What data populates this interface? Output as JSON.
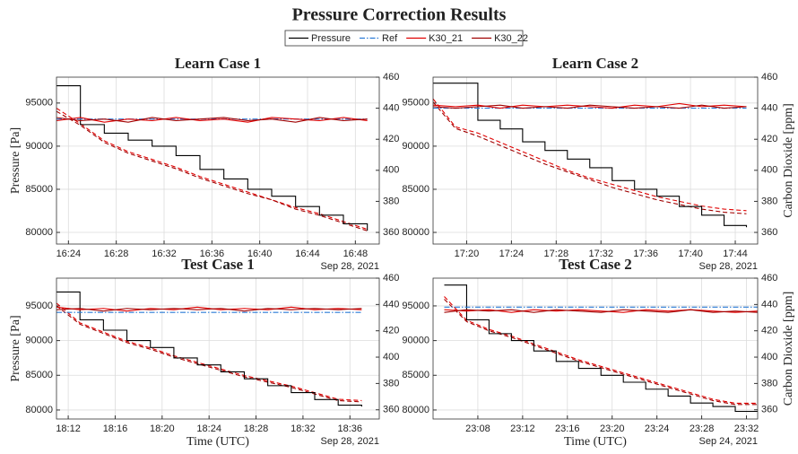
{
  "title": "Pressure Correction Results",
  "chart_data": [
    {
      "type": "line",
      "title": "Learn Case 1",
      "ylabel": "Pressure [Pa]",
      "date_label": "Sep 28, 2021",
      "xlim": [
        983,
        1010
      ],
      "xticks": [
        {
          "value": 984,
          "label": "16:24"
        },
        {
          "value": 988,
          "label": "16:28"
        },
        {
          "value": 992,
          "label": "16:32"
        },
        {
          "value": 996,
          "label": "16:36"
        },
        {
          "value": 1000,
          "label": "16:40"
        },
        {
          "value": 1004,
          "label": "16:44"
        },
        {
          "value": 1008,
          "label": "16:48"
        }
      ],
      "ylim": [
        78650,
        98000
      ],
      "yticks": [
        80000,
        85000,
        90000,
        95000
      ],
      "y2lim": [
        352.5,
        460
      ],
      "y2ticks": [
        360,
        380,
        400,
        420,
        440,
        460
      ],
      "grid": true,
      "x": [
        983,
        985,
        987,
        989,
        991,
        993,
        995,
        997,
        999,
        1001,
        1003,
        1005,
        1007,
        1009
      ],
      "series": [
        {
          "name": "Pressure",
          "color": "#000000",
          "axis": "y",
          "style": "solid",
          "step": true,
          "values": [
            97000,
            92500,
            91500,
            90700,
            90000,
            88900,
            87300,
            86200,
            85000,
            84200,
            83000,
            82000,
            81000,
            80200
          ]
        },
        {
          "name": "Ref",
          "color": "#2b7bd6",
          "axis": "y2",
          "style": "dashdot",
          "values": [
            433,
            433,
            433,
            433,
            433,
            433,
            433,
            433,
            433,
            433,
            433,
            433,
            433,
            433
          ]
        },
        {
          "name": "K30_21",
          "color": "#e00000",
          "axis": "y2",
          "style": "solid",
          "values": [
            432,
            434,
            431,
            433,
            432,
            434,
            432,
            433,
            431,
            434,
            433,
            432,
            434,
            432
          ]
        },
        {
          "name": "K30_22",
          "color": "#a00000",
          "axis": "y2",
          "style": "solid",
          "values": [
            434,
            432,
            433,
            431,
            434,
            432,
            433,
            434,
            432,
            433,
            431,
            434,
            432,
            433
          ]
        },
        {
          "name": "K30_21",
          "color": "#e00000",
          "axis": "y2",
          "style": "dashed",
          "values": [
            440,
            430,
            419,
            412,
            407,
            402,
            396,
            391,
            386,
            381,
            376,
            372,
            367,
            362
          ]
        },
        {
          "name": "K30_22",
          "color": "#a00000",
          "axis": "y2",
          "style": "dashed",
          "values": [
            438,
            429,
            418,
            411,
            406,
            401,
            395,
            390,
            385,
            381,
            375,
            371,
            366,
            361
          ]
        }
      ]
    },
    {
      "type": "line",
      "title": "Learn Case 2",
      "y2label": "Carbon Dioxide [ppm]",
      "date_label": "Sep 28, 2021",
      "xlim": [
        1037,
        1066
      ],
      "xticks": [
        {
          "value": 1040,
          "label": "17:20"
        },
        {
          "value": 1044,
          "label": "17:24"
        },
        {
          "value": 1048,
          "label": "17:28"
        },
        {
          "value": 1052,
          "label": "17:32"
        },
        {
          "value": 1056,
          "label": "17:36"
        },
        {
          "value": 1060,
          "label": "17:40"
        },
        {
          "value": 1064,
          "label": "17:44"
        }
      ],
      "ylim": [
        78650,
        98000
      ],
      "yticks": [
        80000,
        85000,
        90000,
        95000
      ],
      "y2lim": [
        352.5,
        460
      ],
      "y2ticks": [
        360,
        380,
        400,
        420,
        440,
        460
      ],
      "grid": true,
      "x": [
        1037,
        1039,
        1041,
        1043,
        1045,
        1047,
        1049,
        1051,
        1053,
        1055,
        1057,
        1059,
        1061,
        1063,
        1065
      ],
      "series": [
        {
          "name": "Pressure",
          "color": "#000000",
          "axis": "y",
          "style": "solid",
          "step": true,
          "values": [
            97300,
            97300,
            93000,
            92000,
            90500,
            89500,
            88500,
            87500,
            86000,
            85000,
            84200,
            83000,
            82000,
            80800,
            80600
          ]
        },
        {
          "name": "Ref",
          "color": "#2b7bd6",
          "axis": "y2",
          "style": "dashdot",
          "values": [
            440,
            440,
            440,
            440,
            440,
            440,
            440,
            440,
            440,
            440,
            440,
            440,
            440,
            440,
            440
          ]
        },
        {
          "name": "K30_21",
          "color": "#e00000",
          "axis": "y2",
          "style": "solid",
          "values": [
            442,
            441,
            442,
            440,
            442,
            441,
            442,
            441,
            440,
            442,
            441,
            443,
            441,
            442,
            441
          ]
        },
        {
          "name": "K30_22",
          "color": "#a00000",
          "axis": "y2",
          "style": "solid",
          "values": [
            441,
            440,
            441,
            442,
            440,
            441,
            440,
            442,
            441,
            440,
            441,
            440,
            442,
            440,
            441
          ]
        },
        {
          "name": "K30_21",
          "color": "#e00000",
          "axis": "y2",
          "style": "dashed",
          "values": [
            446,
            428,
            424,
            418,
            412,
            406,
            400,
            395,
            391,
            387,
            383,
            380,
            377,
            375,
            374
          ]
        },
        {
          "name": "K30_22",
          "color": "#a00000",
          "axis": "y2",
          "style": "dashed",
          "values": [
            444,
            427,
            422,
            416,
            410,
            404,
            399,
            394,
            389,
            385,
            381,
            378,
            375,
            373,
            372
          ]
        }
      ]
    },
    {
      "type": "line",
      "title": "Test Case 1",
      "ylabel": "Pressure [Pa]",
      "xlabel": "Time (UTC)",
      "date_label": "Sep 28, 2021",
      "xlim": [
        1091,
        1118.5
      ],
      "xticks": [
        {
          "value": 1092,
          "label": "18:12"
        },
        {
          "value": 1096,
          "label": "18:16"
        },
        {
          "value": 1100,
          "label": "18:20"
        },
        {
          "value": 1104,
          "label": "18:24"
        },
        {
          "value": 1108,
          "label": "18:28"
        },
        {
          "value": 1112,
          "label": "18:32"
        },
        {
          "value": 1116,
          "label": "18:36"
        }
      ],
      "ylim": [
        78700,
        99000
      ],
      "yticks": [
        80000,
        85000,
        90000,
        95000
      ],
      "y2lim": [
        353,
        460
      ],
      "y2ticks": [
        360,
        380,
        400,
        420,
        440,
        460
      ],
      "grid": true,
      "x": [
        1091,
        1093,
        1095,
        1097,
        1099,
        1101,
        1103,
        1105,
        1107,
        1109,
        1111,
        1113,
        1115,
        1117
      ],
      "series": [
        {
          "name": "Pressure",
          "color": "#000000",
          "axis": "y",
          "style": "solid",
          "step": true,
          "values": [
            97000,
            93000,
            91500,
            90000,
            89000,
            87500,
            86500,
            85500,
            84500,
            83500,
            82500,
            81500,
            80700,
            80500
          ]
        },
        {
          "name": "Ref",
          "color": "#2b7bd6",
          "axis": "y2",
          "style": "dashdot",
          "values": [
            434,
            434,
            434,
            434,
            434,
            434,
            434,
            434,
            434,
            434,
            434,
            434,
            434,
            434
          ]
        },
        {
          "name": "K30_21",
          "color": "#e00000",
          "axis": "y2",
          "style": "solid",
          "values": [
            438,
            436,
            437,
            435,
            437,
            436,
            438,
            436,
            437,
            436,
            438,
            436,
            437,
            436
          ]
        },
        {
          "name": "K30_22",
          "color": "#a00000",
          "axis": "y2",
          "style": "solid",
          "values": [
            436,
            437,
            435,
            437,
            436,
            437,
            436,
            437,
            435,
            437,
            436,
            437,
            436,
            437
          ]
        },
        {
          "name": "K30_21",
          "color": "#e00000",
          "axis": "y2",
          "style": "dashed",
          "values": [
            441,
            426,
            419,
            412,
            407,
            401,
            396,
            391,
            386,
            382,
            378,
            373,
            368,
            367
          ]
        },
        {
          "name": "K30_22",
          "color": "#a00000",
          "axis": "y2",
          "style": "dashed",
          "values": [
            439,
            425,
            418,
            411,
            406,
            400,
            395,
            390,
            385,
            381,
            377,
            372,
            367,
            366
          ]
        }
      ]
    },
    {
      "type": "line",
      "title": "Test Case 2",
      "xlabel": "Time (UTC)",
      "y2label": "Carbon Dioxide [ppm]",
      "date_label": "Sep 24, 2021",
      "xlim": [
        1384,
        1413
      ],
      "xticks": [
        {
          "value": 1388,
          "label": "23:08"
        },
        {
          "value": 1392,
          "label": "23:12"
        },
        {
          "value": 1396,
          "label": "23:16"
        },
        {
          "value": 1400,
          "label": "23:20"
        },
        {
          "value": 1404,
          "label": "23:24"
        },
        {
          "value": 1408,
          "label": "23:28"
        },
        {
          "value": 1412,
          "label": "23:32"
        }
      ],
      "ylim": [
        78700,
        99000
      ],
      "yticks": [
        80000,
        85000,
        90000,
        95000
      ],
      "y2lim": [
        353,
        460
      ],
      "y2ticks": [
        360,
        380,
        400,
        420,
        440,
        460
      ],
      "grid": true,
      "x": [
        1385,
        1387,
        1389,
        1391,
        1393,
        1395,
        1397,
        1399,
        1401,
        1403,
        1405,
        1407,
        1409,
        1411,
        1413
      ],
      "series": [
        {
          "name": "Pressure",
          "color": "#000000",
          "axis": "y",
          "style": "solid",
          "step": true,
          "values": [
            98000,
            93000,
            91000,
            90000,
            88500,
            87000,
            86000,
            85000,
            84000,
            83000,
            82000,
            81000,
            80500,
            79800,
            79800
          ]
        },
        {
          "name": "Ref",
          "color": "#2b7bd6",
          "axis": "y2",
          "style": "dashdot",
          "values": [
            438,
            438,
            438,
            438,
            438,
            438,
            438,
            438,
            438,
            438,
            438,
            438,
            438,
            438,
            438
          ]
        },
        {
          "name": "K30_21",
          "color": "#e00000",
          "axis": "y2",
          "style": "solid",
          "values": [
            436,
            435,
            436,
            434,
            436,
            435,
            436,
            435,
            434,
            436,
            435,
            436,
            435,
            434,
            435
          ]
        },
        {
          "name": "K30_22",
          "color": "#a00000",
          "axis": "y2",
          "style": "solid",
          "values": [
            434,
            436,
            435,
            436,
            434,
            436,
            435,
            434,
            436,
            435,
            434,
            436,
            434,
            435,
            434
          ]
        },
        {
          "name": "K30_21",
          "color": "#e00000",
          "axis": "y2",
          "style": "dashed",
          "values": [
            446,
            428,
            421,
            416,
            410,
            404,
            398,
            393,
            388,
            383,
            378,
            373,
            368,
            365,
            365
          ]
        },
        {
          "name": "K30_22",
          "color": "#a00000",
          "axis": "y2",
          "style": "dashed",
          "values": [
            444,
            427,
            420,
            415,
            409,
            403,
            397,
            392,
            387,
            382,
            377,
            372,
            367,
            364,
            364
          ]
        }
      ]
    }
  ]
}
